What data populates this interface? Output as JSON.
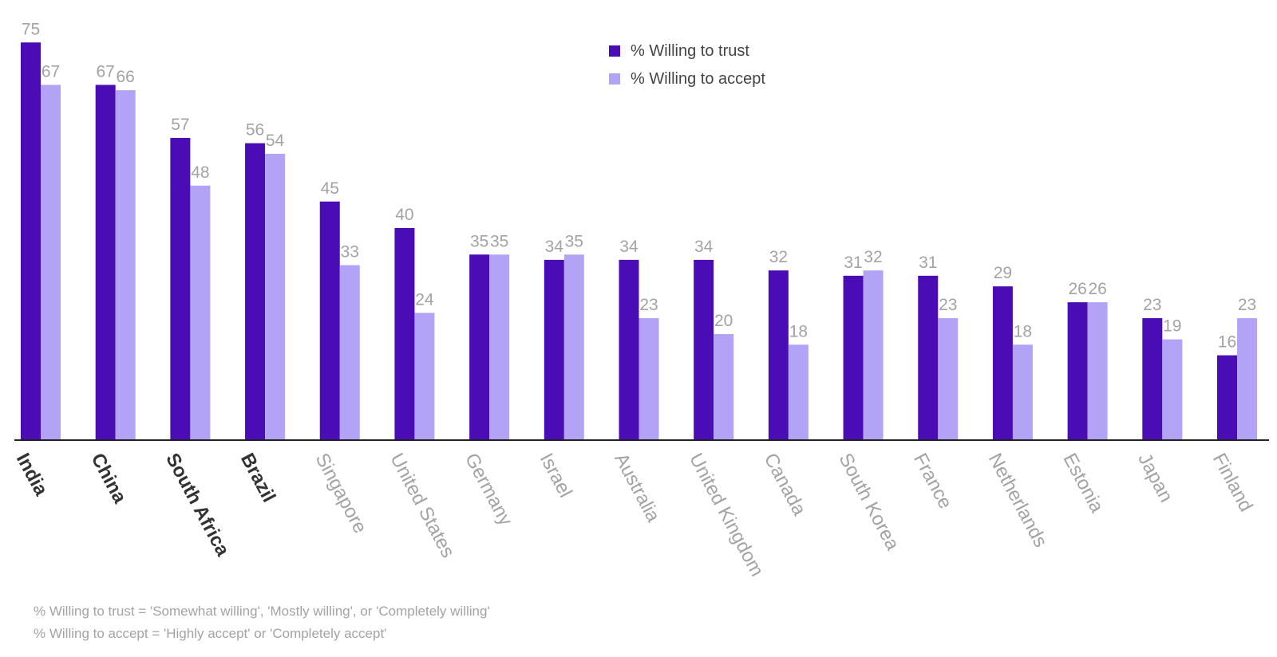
{
  "chart_data": {
    "type": "bar",
    "title": "",
    "xlabel": "",
    "ylabel": "",
    "ylim": [
      0,
      80
    ],
    "grid": false,
    "legend_position": "top-center",
    "categories": [
      "India",
      "China",
      "South Africa",
      "Brazil",
      "Singapore",
      "United States",
      "Germany",
      "Israel",
      "Australia",
      "United Kingdom",
      "Canada",
      "South Korea",
      "France",
      "Netherlands",
      "Estonia",
      "Japan",
      "Finland"
    ],
    "emphasized_categories": [
      "India",
      "China",
      "South Africa",
      "Brazil"
    ],
    "series": [
      {
        "name": "% Willing to trust",
        "color": "#4a0cb4",
        "values": [
          75,
          67,
          57,
          56,
          45,
          40,
          35,
          34,
          34,
          34,
          32,
          31,
          31,
          29,
          26,
          23,
          16
        ]
      },
      {
        "name": "% Willing to accept",
        "color": "#b3a3f7",
        "values": [
          67,
          66,
          48,
          54,
          33,
          24,
          35,
          35,
          23,
          20,
          18,
          32,
          23,
          18,
          26,
          19,
          23
        ]
      }
    ],
    "colors": {
      "axis": "#222222",
      "value_label": "#a3a3a3",
      "emphasized_label": "#333333",
      "regular_label": "#a3a3a3",
      "legend_text": "#444444"
    }
  },
  "footnotes": [
    "% Willing to trust = 'Somewhat willing', 'Mostly willing', or 'Completely willing'",
    "% Willing to accept = 'Highly accept' or 'Completely accept'"
  ]
}
